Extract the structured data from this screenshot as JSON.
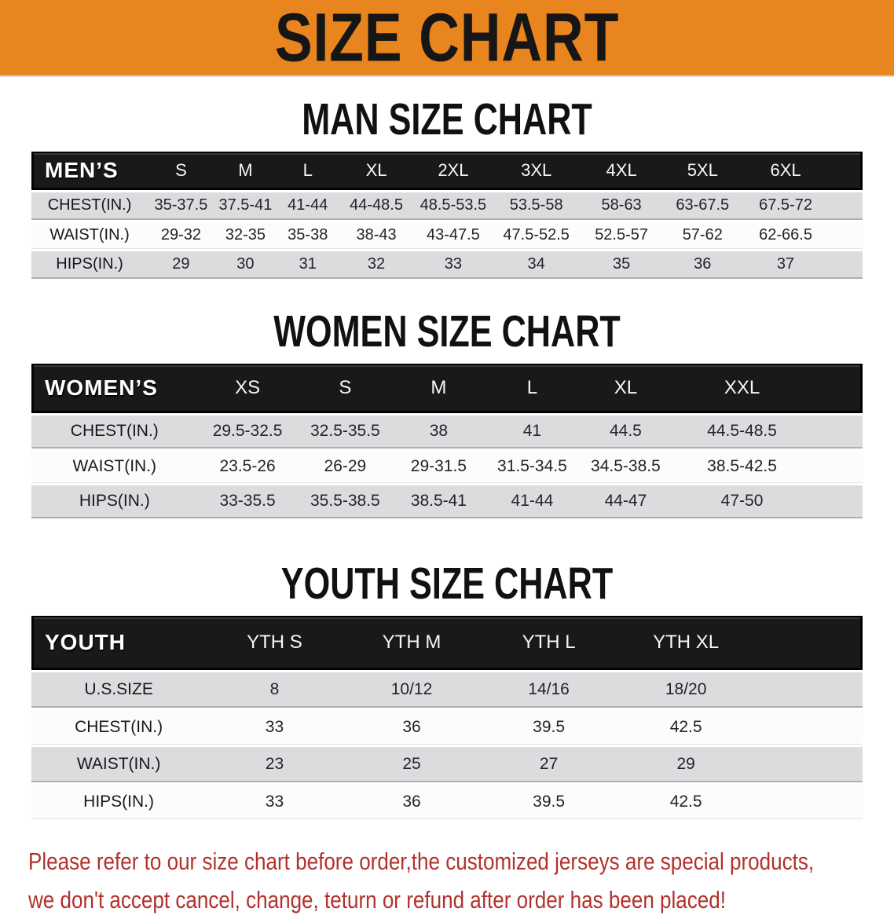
{
  "banner": {
    "title": "SIZE CHART"
  },
  "colors": {
    "banner_bg": "#E8851F",
    "table_header_bg": "#191919",
    "row_gray": "#DCDCDF",
    "row_white": "#FCFCFD",
    "footer_text": "#B1312C"
  },
  "sections": [
    {
      "id": "men",
      "heading": "MAN SIZE CHART",
      "corner_label": "MEN’S",
      "sizes": [
        "S",
        "M",
        "L",
        "XL",
        "2XL",
        "3XL",
        "4XL",
        "5XL",
        "6XL"
      ],
      "rows": [
        {
          "label": "CHEST(IN.)",
          "values": [
            "35-37.5",
            "37.5-41",
            "41-44",
            "44-48.5",
            "48.5-53.5",
            "53.5-58",
            "58-63",
            "63-67.5",
            "67.5-72"
          ]
        },
        {
          "label": "WAIST(IN.)",
          "values": [
            "29-32",
            "32-35",
            "35-38",
            "38-43",
            "43-47.5",
            "47.5-52.5",
            "52.5-57",
            "57-62",
            "62-66.5"
          ]
        },
        {
          "label": "HIPS(IN.)",
          "values": [
            "29",
            "30",
            "31",
            "32",
            "33",
            "34",
            "35",
            "36",
            "37"
          ]
        }
      ]
    },
    {
      "id": "women",
      "heading": "WOMEN SIZE CHART",
      "corner_label": "WOMEN’S",
      "sizes": [
        "XS",
        "S",
        "M",
        "L",
        "XL",
        "XXL"
      ],
      "rows": [
        {
          "label": "CHEST(IN.)",
          "values": [
            "29.5-32.5",
            "32.5-35.5",
            "38",
            "41",
            "44.5",
            "44.5-48.5"
          ]
        },
        {
          "label": "WAIST(IN.)",
          "values": [
            "23.5-26",
            "26-29",
            "29-31.5",
            "31.5-34.5",
            "34.5-38.5",
            "38.5-42.5"
          ]
        },
        {
          "label": "HIPS(IN.)",
          "values": [
            "33-35.5",
            "35.5-38.5",
            "38.5-41",
            "41-44",
            "44-47",
            "47-50"
          ]
        }
      ]
    },
    {
      "id": "youth",
      "heading": "YOUTH SIZE CHART",
      "corner_label": "YOUTH",
      "sizes": [
        "YTH S",
        "YTH M",
        "YTH L",
        "YTH XL"
      ],
      "rows": [
        {
          "label": "U.S.SIZE",
          "values": [
            "8",
            "10/12",
            "14/16",
            "18/20"
          ]
        },
        {
          "label": "CHEST(IN.)",
          "values": [
            "33",
            "36",
            "39.5",
            "42.5"
          ]
        },
        {
          "label": "WAIST(IN.)",
          "values": [
            "23",
            "25",
            "27",
            "29"
          ]
        },
        {
          "label": "HIPS(IN.)",
          "values": [
            "33",
            "36",
            "39.5",
            "42.5"
          ]
        }
      ]
    }
  ],
  "footer": {
    "line1": "Please refer to our size chart before order,the customized jerseys are special products,",
    "line2": "we don't accept cancel, change, teturn or refund after order has been placed!"
  }
}
